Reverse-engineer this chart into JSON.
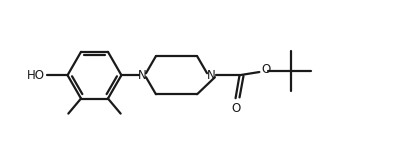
{
  "bg_color": "#ffffff",
  "line_color": "#1a1a1a",
  "line_width": 1.6,
  "label_color": "#1a1a1a",
  "font_size": 8.5,
  "figsize": [
    3.99,
    1.5
  ],
  "dpi": 100,
  "xlim": [
    0,
    10
  ],
  "ylim": [
    0,
    3.75
  ]
}
